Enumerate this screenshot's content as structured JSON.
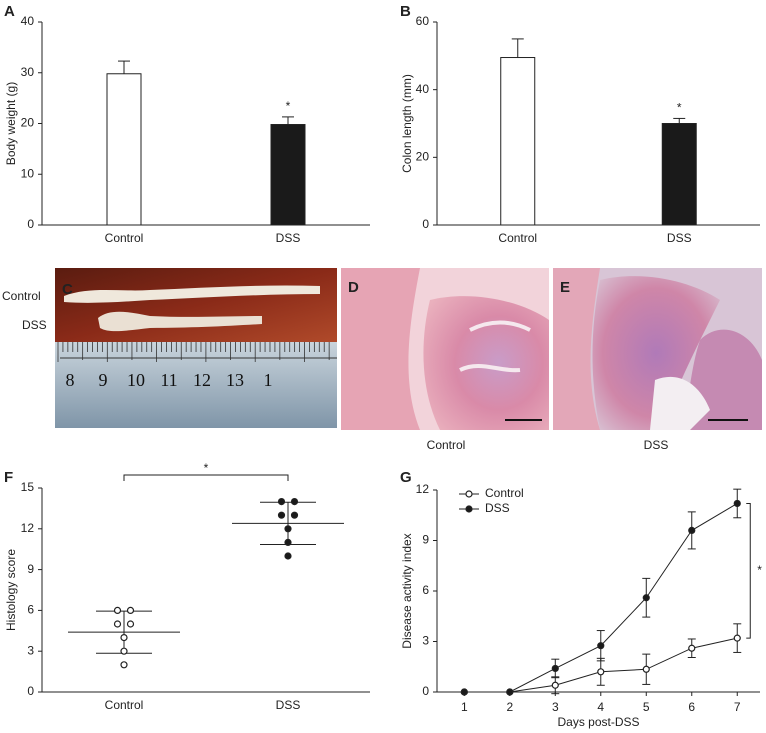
{
  "chart_data": [
    {
      "type": "bar",
      "label": "A",
      "ylabel": "Body weight (g)",
      "categories": [
        "Control",
        "DSS"
      ],
      "values": [
        29.8,
        19.8
      ],
      "errors": [
        2.5,
        1.5
      ],
      "colors": [
        "#ffffff",
        "#1a1a1a"
      ],
      "ylim": [
        0,
        40
      ],
      "yticks": [
        0,
        10,
        20,
        30,
        40
      ],
      "annotation": "*"
    },
    {
      "type": "bar",
      "label": "B",
      "ylabel": "Colon length (mm)",
      "categories": [
        "Control",
        "DSS"
      ],
      "values": [
        49.5,
        30
      ],
      "errors": [
        5.5,
        1.5
      ],
      "colors": [
        "#ffffff",
        "#1a1a1a"
      ],
      "ylim": [
        0,
        60
      ],
      "yticks": [
        0,
        20,
        40,
        60
      ],
      "annotation": "*"
    },
    {
      "type": "dot",
      "label": "F",
      "ylabel": "Histology score",
      "groups": [
        {
          "name": "Control",
          "values": [
            6,
            6,
            5,
            5,
            4,
            3,
            2
          ],
          "mean": 4.4,
          "sd": 1.55,
          "color": "#ffffff"
        },
        {
          "name": "DSS",
          "values": [
            14,
            14,
            13,
            13,
            12,
            11,
            10
          ],
          "mean": 12.4,
          "sd": 1.55,
          "color": "#1a1a1a"
        }
      ],
      "ylim": [
        0,
        15
      ],
      "yticks": [
        0,
        3,
        6,
        9,
        12,
        15
      ],
      "annotation": "*"
    },
    {
      "type": "line",
      "label": "G",
      "xlabel": "Days post-DSS",
      "ylabel": "Disease activity index",
      "x": [
        1,
        2,
        3,
        4,
        5,
        6,
        7
      ],
      "series": [
        {
          "name": "Control",
          "color": "#ffffff",
          "values": [
            0,
            0,
            0.4,
            1.2,
            1.35,
            2.6,
            3.2
          ],
          "errors": [
            0,
            0,
            0.5,
            0.8,
            0.9,
            0.55,
            0.85
          ]
        },
        {
          "name": "DSS",
          "color": "#1a1a1a",
          "values": [
            0,
            0,
            1.4,
            2.75,
            5.6,
            9.6,
            11.2
          ],
          "errors": [
            0,
            0,
            0.55,
            0.9,
            1.15,
            1.1,
            0.85
          ]
        }
      ],
      "xlim": [
        0.4,
        7.5
      ],
      "xticks": [
        1,
        2,
        3,
        4,
        5,
        6,
        7
      ],
      "ylim": [
        0,
        12
      ],
      "yticks": [
        0,
        3,
        6,
        9,
        12
      ],
      "legend": "upper left",
      "annotation": "*"
    }
  ],
  "images": [
    {
      "label": "C",
      "rows": [
        "Control",
        "DSS"
      ],
      "ruler": [
        "8",
        "9",
        "10",
        "11",
        "12",
        "13",
        "1"
      ]
    },
    {
      "label": "D",
      "caption": "Control"
    },
    {
      "label": "E",
      "caption": "DSS"
    }
  ]
}
